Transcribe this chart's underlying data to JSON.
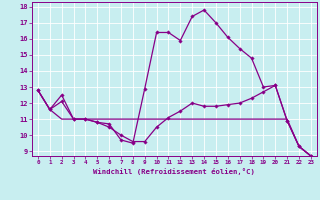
{
  "xlabel": "Windchill (Refroidissement éolien,°C)",
  "xlim": [
    -0.5,
    23.5
  ],
  "ylim": [
    8.7,
    18.3
  ],
  "xticks": [
    0,
    1,
    2,
    3,
    4,
    5,
    6,
    7,
    8,
    9,
    10,
    11,
    12,
    13,
    14,
    15,
    16,
    17,
    18,
    19,
    20,
    21,
    22,
    23
  ],
  "yticks": [
    9,
    10,
    11,
    12,
    13,
    14,
    15,
    16,
    17,
    18
  ],
  "background_color": "#c8eef0",
  "line_color": "#880088",
  "curve_upper_x": [
    0,
    1,
    2,
    3,
    4,
    5,
    6,
    7,
    8,
    9,
    10,
    11,
    12,
    13,
    14,
    15,
    16,
    17,
    18,
    19,
    20,
    21,
    22,
    23
  ],
  "curve_upper_y": [
    12.8,
    11.6,
    12.5,
    11.0,
    11.0,
    10.8,
    10.7,
    9.7,
    9.5,
    12.9,
    16.4,
    16.4,
    15.9,
    17.4,
    17.8,
    17.0,
    16.1,
    15.4,
    14.8,
    13.0,
    13.1,
    10.9,
    9.3,
    8.7
  ],
  "curve_lower_x": [
    0,
    1,
    2,
    3,
    4,
    5,
    6,
    7,
    8,
    9,
    10,
    11,
    12,
    13,
    14,
    15,
    16,
    17,
    18,
    19,
    20,
    21,
    22,
    23
  ],
  "curve_lower_y": [
    12.8,
    11.6,
    12.1,
    11.0,
    11.0,
    10.8,
    10.5,
    10.0,
    9.6,
    9.6,
    10.5,
    11.1,
    11.5,
    12.0,
    11.8,
    11.8,
    11.9,
    12.0,
    12.3,
    12.7,
    13.1,
    10.9,
    9.3,
    8.7
  ],
  "curve_mid_x": [
    0,
    1,
    2,
    3,
    4,
    5,
    6,
    7,
    8,
    9,
    10,
    11,
    12,
    13,
    14,
    15,
    16,
    17,
    18,
    19,
    20,
    21,
    22,
    23
  ],
  "curve_mid_y": [
    12.8,
    11.6,
    11.0,
    11.0,
    11.0,
    11.0,
    11.0,
    11.0,
    11.0,
    11.0,
    11.0,
    11.0,
    11.0,
    11.0,
    11.0,
    11.0,
    11.0,
    11.0,
    11.0,
    11.0,
    11.0,
    11.0,
    9.3,
    8.7
  ]
}
